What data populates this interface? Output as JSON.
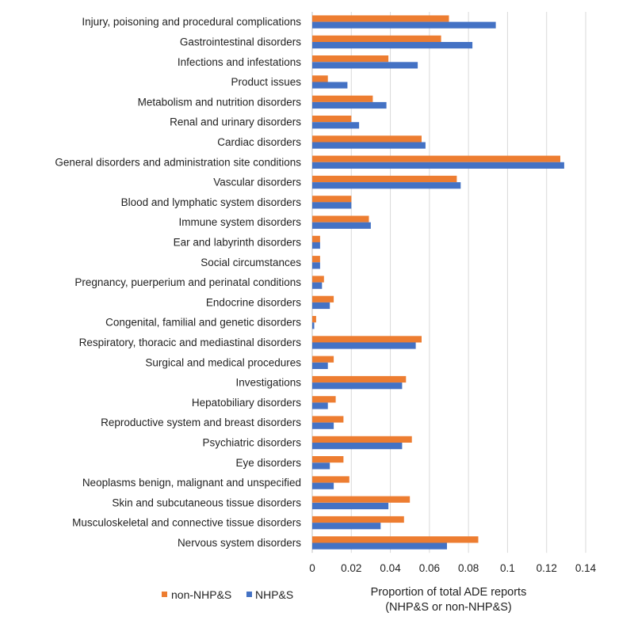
{
  "chart_data": {
    "type": "bar",
    "orientation": "horizontal",
    "categories": [
      "Injury, poisoning and procedural complications",
      "Gastrointestinal disorders",
      "Infections and infestations",
      "Product issues",
      "Metabolism and nutrition disorders",
      "Renal and urinary disorders",
      "Cardiac disorders",
      "General disorders and administration site conditions",
      "Vascular disorders",
      "Blood and lymphatic system disorders",
      "Immune system disorders",
      "Ear and labyrinth disorders",
      "Social circumstances",
      "Pregnancy, puerperium and perinatal conditions",
      "Endocrine disorders",
      "Congenital, familial and genetic disorders",
      "Respiratory, thoracic and mediastinal disorders",
      "Surgical and medical procedures",
      "Investigations",
      "Hepatobiliary disorders",
      "Reproductive system and breast disorders",
      "Psychiatric disorders",
      "Eye disorders",
      "Neoplasms benign, malignant and unspecified",
      "Skin and subcutaneous tissue disorders",
      "Musculoskeletal and connective tissue disorders",
      "Nervous system disorders"
    ],
    "series": [
      {
        "name": "non-NHP&S",
        "color": "#ED7D31",
        "values": [
          0.07,
          0.066,
          0.039,
          0.008,
          0.031,
          0.02,
          0.056,
          0.127,
          0.074,
          0.02,
          0.029,
          0.004,
          0.004,
          0.006,
          0.011,
          0.002,
          0.056,
          0.011,
          0.048,
          0.012,
          0.016,
          0.051,
          0.016,
          0.019,
          0.05,
          0.047,
          0.085
        ]
      },
      {
        "name": "NHP&S",
        "color": "#4472C4",
        "values": [
          0.094,
          0.082,
          0.054,
          0.018,
          0.038,
          0.024,
          0.058,
          0.129,
          0.076,
          0.02,
          0.03,
          0.004,
          0.004,
          0.005,
          0.009,
          0.001,
          0.053,
          0.008,
          0.046,
          0.008,
          0.011,
          0.046,
          0.009,
          0.011,
          0.039,
          0.035,
          0.069
        ]
      }
    ],
    "xlim": [
      0,
      0.14
    ],
    "xticks": [
      "0",
      "0.02",
      "0.04",
      "0.06",
      "0.08",
      "0.1",
      "0.12",
      "0.14"
    ],
    "xlabel_line1": "Proportion  of total ADE reports",
    "xlabel_line2": "(NHP&S or non-NHP&S)",
    "grid": "vertical",
    "legend": "bottom-left"
  }
}
